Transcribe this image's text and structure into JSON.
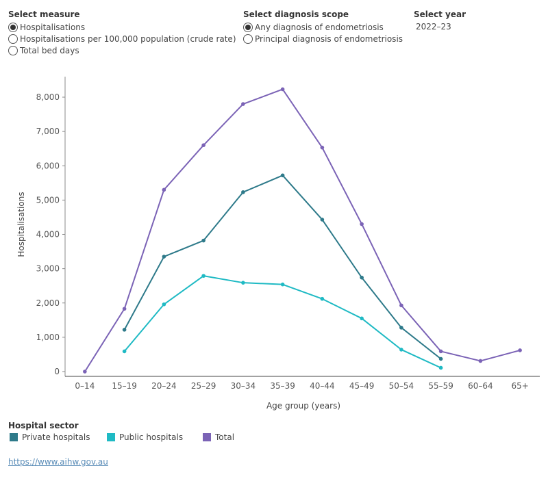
{
  "controls": {
    "measure": {
      "title": "Select measure",
      "options": [
        {
          "label": "Hospitalisations",
          "selected": true
        },
        {
          "label": "Hospitalisations per 100,000 population (crude rate)",
          "selected": false
        },
        {
          "label": "Total bed days",
          "selected": false
        }
      ]
    },
    "scope": {
      "title": "Select diagnosis scope",
      "options": [
        {
          "label": "Any diagnosis of endometriosis",
          "selected": true
        },
        {
          "label": "Principal diagnosis of endometriosis",
          "selected": false
        }
      ]
    },
    "year": {
      "title": "Select year",
      "value": "2022–23"
    }
  },
  "legend": {
    "title": "Hospital sector",
    "items": [
      {
        "label": "Private hospitals",
        "color": "#2e7a8a"
      },
      {
        "label": "Public hospitals",
        "color": "#1fbac4"
      },
      {
        "label": "Total",
        "color": "#7b63b6"
      }
    ]
  },
  "source": {
    "link_text": "https://www.aihw.gov.au"
  },
  "chart_data": {
    "type": "line",
    "xlabel": "Age group (years)",
    "ylabel": "Hospitalisations",
    "categories": [
      "0–14",
      "15–19",
      "20–24",
      "25–29",
      "30–34",
      "35–39",
      "40–44",
      "45–49",
      "50–54",
      "55–59",
      "60–64",
      "65+"
    ],
    "ylim": [
      0,
      8500
    ],
    "yticks": [
      0,
      1000,
      2000,
      3000,
      4000,
      5000,
      6000,
      7000,
      8000
    ],
    "ytick_labels": [
      "0",
      "1,000",
      "2,000",
      "3,000",
      "4,000",
      "5,000",
      "6,000",
      "7,000",
      "8,000"
    ],
    "grid": false,
    "series": [
      {
        "name": "Total",
        "color": "#7b63b6",
        "values": [
          0,
          1830,
          5300,
          6600,
          7800,
          8230,
          6530,
          4300,
          1930,
          590,
          310,
          620
        ]
      },
      {
        "name": "Private hospitals",
        "color": "#2e7a8a",
        "values": [
          null,
          1220,
          3350,
          3820,
          5230,
          5720,
          4430,
          2740,
          1280,
          370,
          null,
          null
        ]
      },
      {
        "name": "Public hospitals",
        "color": "#1fbac4",
        "values": [
          null,
          590,
          1960,
          2790,
          2590,
          2540,
          2120,
          1550,
          640,
          110,
          null,
          null
        ]
      }
    ]
  }
}
